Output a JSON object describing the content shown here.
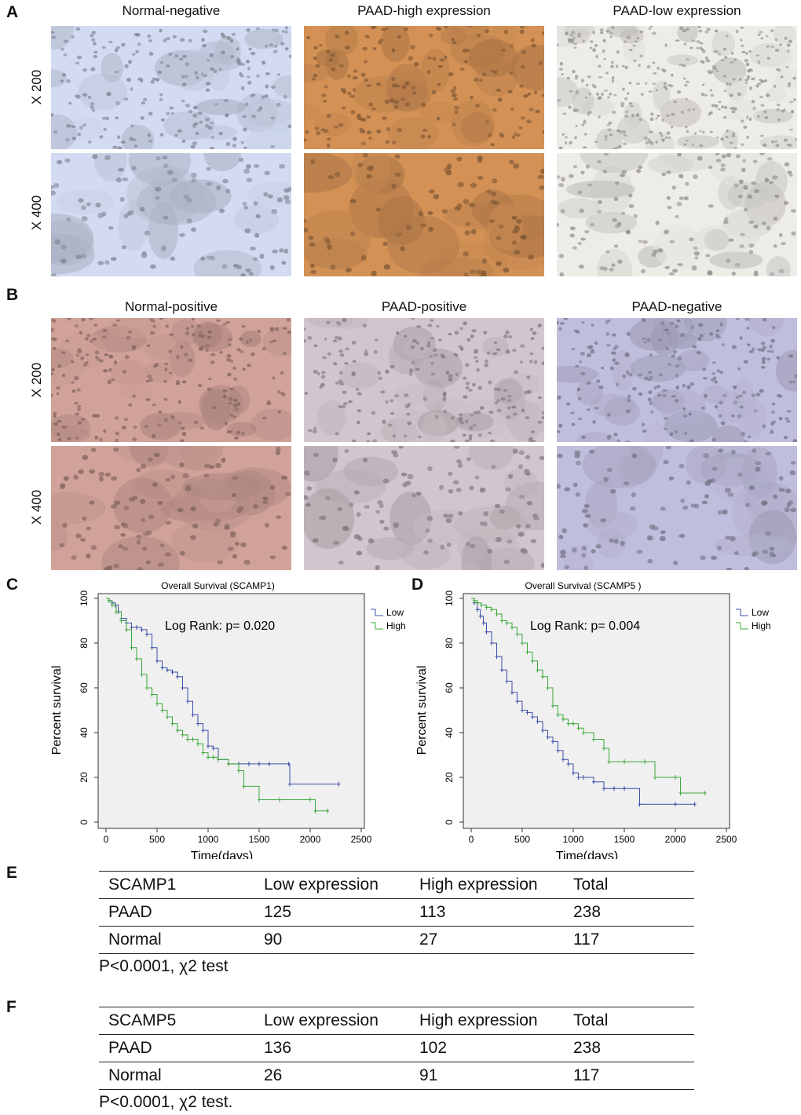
{
  "panels": {
    "A": {
      "letter": "A",
      "columns": [
        "Normal-negative",
        "PAAD-high expression",
        "PAAD-low expression"
      ],
      "rows": [
        "X 200",
        "X 400"
      ]
    },
    "B": {
      "letter": "B",
      "columns": [
        "Normal-positive",
        "PAAD-positive",
        "PAAD-negative"
      ],
      "rows": [
        "X 200",
        "X 400"
      ]
    },
    "C": {
      "letter": "C"
    },
    "D": {
      "letter": "D"
    },
    "E": {
      "letter": "E",
      "header": [
        "SCAMP1",
        "Low expression",
        "High expression",
        "Total"
      ],
      "rows": [
        [
          "PAAD",
          "125",
          "113",
          "238"
        ],
        [
          "Normal",
          "90",
          "27",
          "117"
        ]
      ],
      "note": "P<0.0001,  χ2 test"
    },
    "F": {
      "letter": "F",
      "header": [
        "SCAMP5",
        "Low expression",
        "High expression",
        "Total"
      ],
      "rows": [
        [
          "PAAD",
          "136",
          "102",
          "238"
        ],
        [
          "Normal",
          "26",
          "91",
          "117"
        ]
      ],
      "note": "P<0.0001,  χ2 test."
    }
  },
  "colors": {
    "low": "#3a4ea8",
    "high": "#3aa83a",
    "plot_bg": "#f0f0f0",
    "micro_A_normal": "#c9d1e6",
    "micro_A_high": "#c98a52",
    "micro_A_low": "#e3e1dc",
    "micro_B_normal": "#c79a92",
    "micro_B_paad_pos": "#c9bcc4",
    "micro_B_paad_neg": "#b7b5d2"
  },
  "chart_data": [
    {
      "type": "line",
      "title": "Overall Survival (SCAMP1)",
      "xlabel": "Time(days)",
      "ylabel": "Percent survival",
      "xlim": [
        0,
        2500
      ],
      "ylim": [
        0,
        100
      ],
      "xticks": [
        0,
        500,
        1000,
        1500,
        2000,
        2500
      ],
      "yticks": [
        0,
        20,
        40,
        60,
        80,
        100
      ],
      "annotation": "Log Rank: p= 0.020",
      "legend": "top-right",
      "series": [
        {
          "name": "Low",
          "color_key": "low",
          "x": [
            0,
            30,
            60,
            90,
            120,
            150,
            200,
            250,
            300,
            350,
            400,
            450,
            500,
            550,
            600,
            650,
            700,
            750,
            800,
            850,
            900,
            950,
            1000,
            1050,
            1100,
            1200,
            1300,
            1400,
            1500,
            1600,
            1790,
            1800,
            2280
          ],
          "y": [
            100,
            99,
            98,
            97,
            94,
            91,
            89,
            87,
            87,
            86,
            84,
            78,
            72,
            69,
            68,
            67,
            65,
            60,
            54,
            48,
            44,
            41,
            34,
            33,
            28,
            26,
            26,
            26,
            26,
            26,
            26,
            17,
            17
          ]
        },
        {
          "name": "High",
          "color_key": "high",
          "x": [
            0,
            30,
            60,
            100,
            150,
            200,
            250,
            300,
            350,
            400,
            450,
            500,
            550,
            600,
            650,
            700,
            750,
            800,
            850,
            900,
            950,
            1000,
            1050,
            1100,
            1200,
            1300,
            1350,
            1500,
            1700,
            2000,
            2050,
            2170
          ],
          "y": [
            100,
            99,
            97,
            94,
            90,
            86,
            78,
            73,
            66,
            60,
            57,
            53,
            50,
            47,
            44,
            41,
            39,
            37,
            37,
            35,
            31,
            29,
            29,
            28,
            26,
            23,
            16,
            10,
            10,
            10,
            5,
            5
          ]
        }
      ]
    },
    {
      "type": "line",
      "title": "Overall Survival (SCAMP5 )",
      "xlabel": "Time(days)",
      "ylabel": "Percent survival",
      "xlim": [
        0,
        2500
      ],
      "ylim": [
        0,
        100
      ],
      "xticks": [
        0,
        500,
        1000,
        1500,
        2000,
        2500
      ],
      "yticks": [
        0,
        20,
        40,
        60,
        80,
        100
      ],
      "annotation": "Log Rank: p= 0.004",
      "legend": "top-right",
      "series": [
        {
          "name": "Low",
          "color_key": "low",
          "x": [
            0,
            30,
            60,
            90,
            120,
            150,
            200,
            250,
            300,
            350,
            400,
            450,
            500,
            550,
            600,
            650,
            700,
            750,
            800,
            850,
            900,
            950,
            1000,
            1050,
            1100,
            1200,
            1300,
            1400,
            1500,
            1650,
            2000,
            2190
          ],
          "y": [
            100,
            98,
            95,
            92,
            89,
            85,
            80,
            74,
            68,
            63,
            58,
            54,
            50,
            49,
            47,
            45,
            41,
            38,
            36,
            32,
            28,
            26,
            22,
            20,
            20,
            18,
            15,
            15,
            15,
            8,
            8,
            8
          ]
        },
        {
          "name": "High",
          "color_key": "high",
          "x": [
            0,
            30,
            60,
            100,
            150,
            200,
            250,
            300,
            350,
            400,
            450,
            500,
            550,
            600,
            650,
            700,
            750,
            800,
            850,
            900,
            950,
            1000,
            1050,
            1100,
            1200,
            1300,
            1350,
            1500,
            1700,
            1800,
            2000,
            2050,
            2290
          ],
          "y": [
            100,
            99,
            98,
            97,
            96,
            95,
            93,
            90,
            89,
            87,
            84,
            80,
            76,
            72,
            68,
            65,
            60,
            52,
            48,
            46,
            44,
            44,
            42,
            40,
            37,
            33,
            27,
            27,
            27,
            20,
            20,
            13,
            13
          ]
        }
      ]
    }
  ]
}
